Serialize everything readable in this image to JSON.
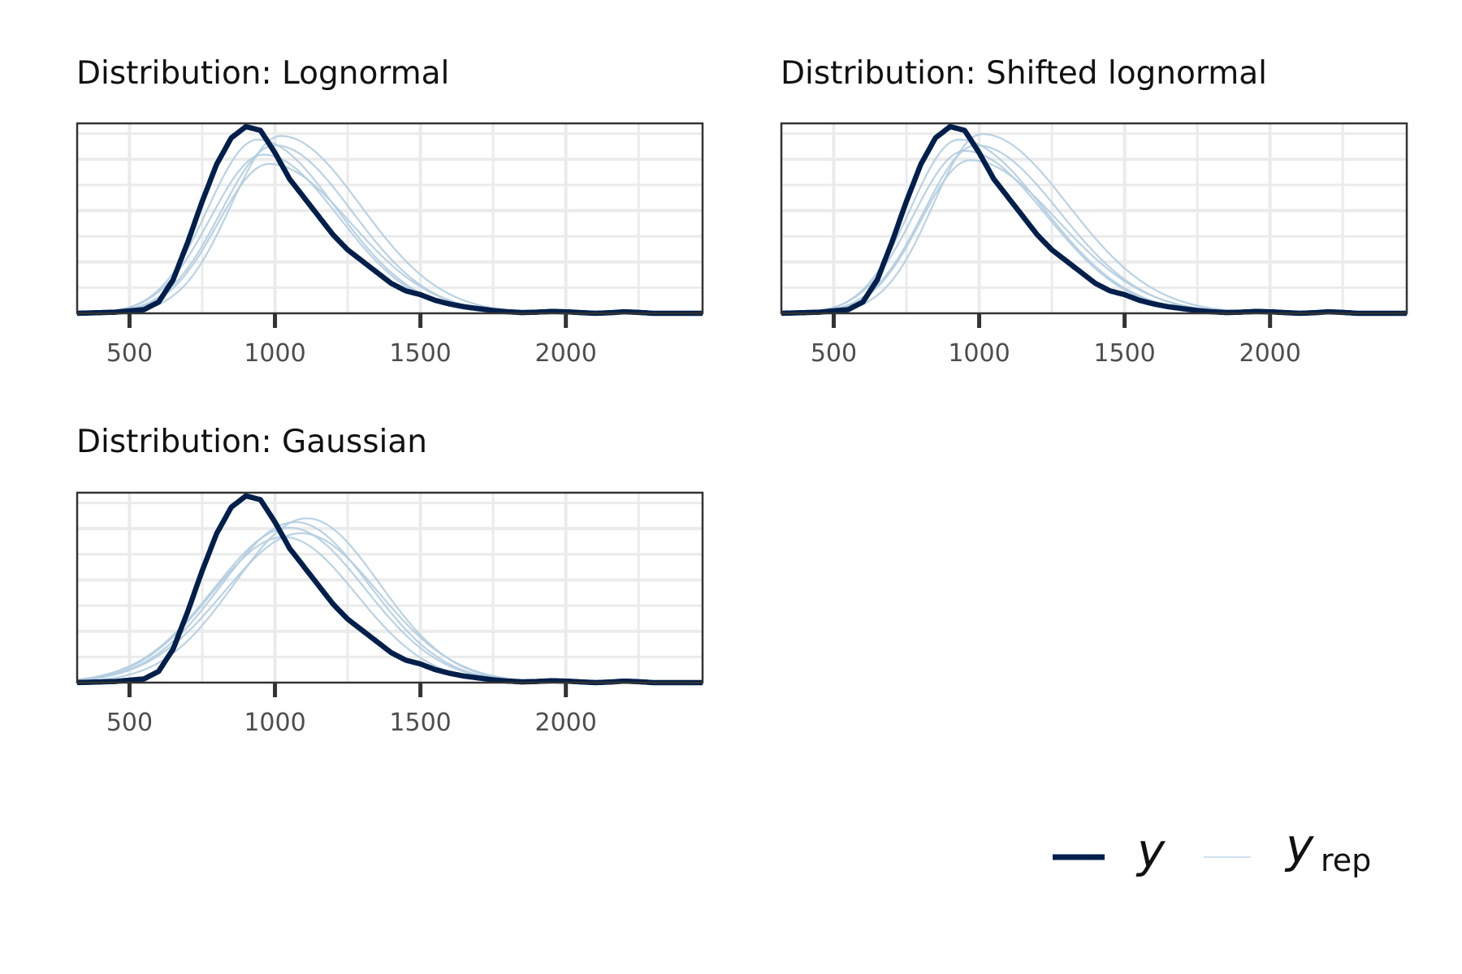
{
  "chart_data": [
    {
      "type": "line",
      "title": "Distribution: Lognormal",
      "xlabel": "",
      "ylabel": "",
      "xlim": [
        320,
        2470
      ],
      "xticks": [
        500,
        1000,
        1500,
        2000
      ],
      "tick_labels": [
        "500",
        "1000",
        "1500",
        "2000"
      ],
      "grid": true,
      "y_axis_labels_shown": false,
      "y": {
        "x": [
          320,
          450,
          550,
          600,
          650,
          700,
          750,
          800,
          850,
          900,
          950,
          1000,
          1050,
          1100,
          1150,
          1200,
          1250,
          1300,
          1350,
          1400,
          1450,
          1500,
          1550,
          1600,
          1650,
          1700,
          1750,
          1800,
          1850,
          1900,
          1950,
          2000,
          2050,
          2100,
          2150,
          2200,
          2250,
          2300,
          2350,
          2400,
          2470
        ],
        "density": [
          0.0,
          0.006,
          0.02,
          0.06,
          0.18,
          0.38,
          0.6,
          0.8,
          0.94,
          1.0,
          0.98,
          0.86,
          0.72,
          0.62,
          0.52,
          0.42,
          0.34,
          0.28,
          0.22,
          0.16,
          0.12,
          0.1,
          0.07,
          0.05,
          0.035,
          0.025,
          0.015,
          0.008,
          0.004,
          0.006,
          0.01,
          0.008,
          0.004,
          0.0,
          0.003,
          0.008,
          0.005,
          0.0,
          0.0,
          0.0,
          0.0
        ]
      },
      "y_rep": {
        "peak_x": [
          940,
          960,
          980,
          1000,
          1020
        ],
        "peak_density": [
          0.93,
          0.85,
          0.8,
          0.9,
          0.95
        ],
        "sd_left": [
          170,
          180,
          175,
          185,
          172
        ],
        "sd_right": [
          270,
          260,
          280,
          265,
          275
        ]
      }
    },
    {
      "type": "line",
      "title": "Distribution: Shifted lognormal",
      "xlabel": "",
      "ylabel": "",
      "xlim": [
        320,
        2470
      ],
      "xticks": [
        500,
        1000,
        1500,
        2000
      ],
      "tick_labels": [
        "500",
        "1000",
        "1500",
        "2000"
      ],
      "grid": true,
      "y_axis_labels_shown": false,
      "y": {
        "x": [
          320,
          450,
          550,
          600,
          650,
          700,
          750,
          800,
          850,
          900,
          950,
          1000,
          1050,
          1100,
          1150,
          1200,
          1250,
          1300,
          1350,
          1400,
          1450,
          1500,
          1550,
          1600,
          1650,
          1700,
          1750,
          1800,
          1850,
          1900,
          1950,
          2000,
          2050,
          2100,
          2150,
          2200,
          2250,
          2300,
          2350,
          2400,
          2470
        ],
        "density": [
          0.0,
          0.006,
          0.02,
          0.06,
          0.18,
          0.38,
          0.6,
          0.8,
          0.94,
          1.0,
          0.98,
          0.86,
          0.72,
          0.62,
          0.52,
          0.42,
          0.34,
          0.28,
          0.22,
          0.16,
          0.12,
          0.1,
          0.07,
          0.05,
          0.035,
          0.025,
          0.015,
          0.008,
          0.004,
          0.006,
          0.01,
          0.008,
          0.004,
          0.0,
          0.003,
          0.008,
          0.005,
          0.0,
          0.0,
          0.0,
          0.0
        ]
      },
      "y_rep": {
        "peak_x": [
          930,
          950,
          970,
          990,
          1010
        ],
        "peak_density": [
          0.93,
          0.87,
          0.82,
          0.9,
          0.96
        ],
        "sd_left": [
          165,
          175,
          170,
          180,
          168
        ],
        "sd_right": [
          290,
          280,
          300,
          285,
          295
        ]
      }
    },
    {
      "type": "line",
      "title": "Distribution: Gaussian",
      "xlabel": "",
      "ylabel": "",
      "xlim": [
        320,
        2470
      ],
      "xticks": [
        500,
        1000,
        1500,
        2000
      ],
      "tick_labels": [
        "500",
        "1000",
        "1500",
        "2000"
      ],
      "grid": true,
      "y_axis_labels_shown": false,
      "y": {
        "x": [
          320,
          450,
          550,
          600,
          650,
          700,
          750,
          800,
          850,
          900,
          950,
          1000,
          1050,
          1100,
          1150,
          1200,
          1250,
          1300,
          1350,
          1400,
          1450,
          1500,
          1550,
          1600,
          1650,
          1700,
          1750,
          1800,
          1850,
          1900,
          1950,
          2000,
          2050,
          2100,
          2150,
          2200,
          2250,
          2300,
          2350,
          2400,
          2470
        ],
        "density": [
          0.0,
          0.006,
          0.02,
          0.06,
          0.18,
          0.38,
          0.6,
          0.8,
          0.94,
          1.0,
          0.98,
          0.86,
          0.72,
          0.62,
          0.52,
          0.42,
          0.34,
          0.28,
          0.22,
          0.16,
          0.12,
          0.1,
          0.07,
          0.05,
          0.035,
          0.025,
          0.015,
          0.008,
          0.004,
          0.006,
          0.01,
          0.008,
          0.004,
          0.0,
          0.003,
          0.008,
          0.005,
          0.0,
          0.0,
          0.0,
          0.0
        ]
      },
      "y_rep": {
        "peak_x": [
          1030,
          1050,
          1070,
          1090,
          1110
        ],
        "peak_density": [
          0.78,
          0.83,
          0.86,
          0.8,
          0.88
        ],
        "sd_left": [
          250,
          260,
          255,
          265,
          248
        ],
        "sd_right": [
          250,
          260,
          255,
          265,
          248
        ]
      }
    }
  ],
  "legend": {
    "position": "bottom-right",
    "y_label": "y",
    "yrep_main": "y",
    "yrep_sub": "rep"
  },
  "colors": {
    "y": "#011f4b",
    "y_rep": "#b3cde0",
    "grid": "#ebebeb",
    "panel_border": "#333333",
    "tick_label": "#4d4d4d",
    "legend_yrep_key": "#d1e1ec"
  }
}
